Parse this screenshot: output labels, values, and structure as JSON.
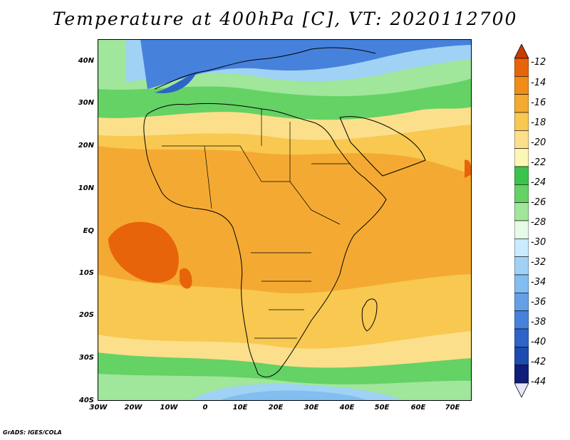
{
  "title": "Temperature at 400hPa [C], VT: 2020112700",
  "footer": "GrADS: IGES/COLA",
  "y_axis_labels": [
    "40N",
    "30N",
    "20N",
    "10N",
    "EQ",
    "10S",
    "20S",
    "30S",
    "40S"
  ],
  "x_axis_labels": [
    "30W",
    "20W",
    "10W",
    "0",
    "10E",
    "20E",
    "30E",
    "40E",
    "50E",
    "60E",
    "70E"
  ],
  "colorbar": {
    "labels": [
      "-12",
      "-14",
      "-16",
      "-18",
      "-20",
      "-22",
      "-24",
      "-26",
      "-28",
      "-30",
      "-32",
      "-34",
      "-36",
      "-38",
      "-40",
      "-42",
      "-44"
    ],
    "colors": [
      "#c83c00",
      "#e8640a",
      "#f08c18",
      "#f4aa32",
      "#f8c850",
      "#fcdf8a",
      "#fcf6b4",
      "#3cc34b",
      "#64d264",
      "#a0e69b",
      "#e6fae6",
      "#c8ebff",
      "#a0d2f5",
      "#82bef0",
      "#64a0e6",
      "#4682dc",
      "#2d64c8",
      "#1e4baf",
      "#0f1e78",
      "#e6e6fa"
    ]
  },
  "fill_colors": {
    "tropical_orange": "#f4aa32",
    "deep_orange": "#e8640a",
    "light_orange": "#f8c850",
    "pale_yellow": "#fcdf8a",
    "light_green": "#a0e69b",
    "green": "#64d264",
    "cold_blue": "#4682dc",
    "pale_blue": "#a0d2f5",
    "outline": "#000000"
  }
}
